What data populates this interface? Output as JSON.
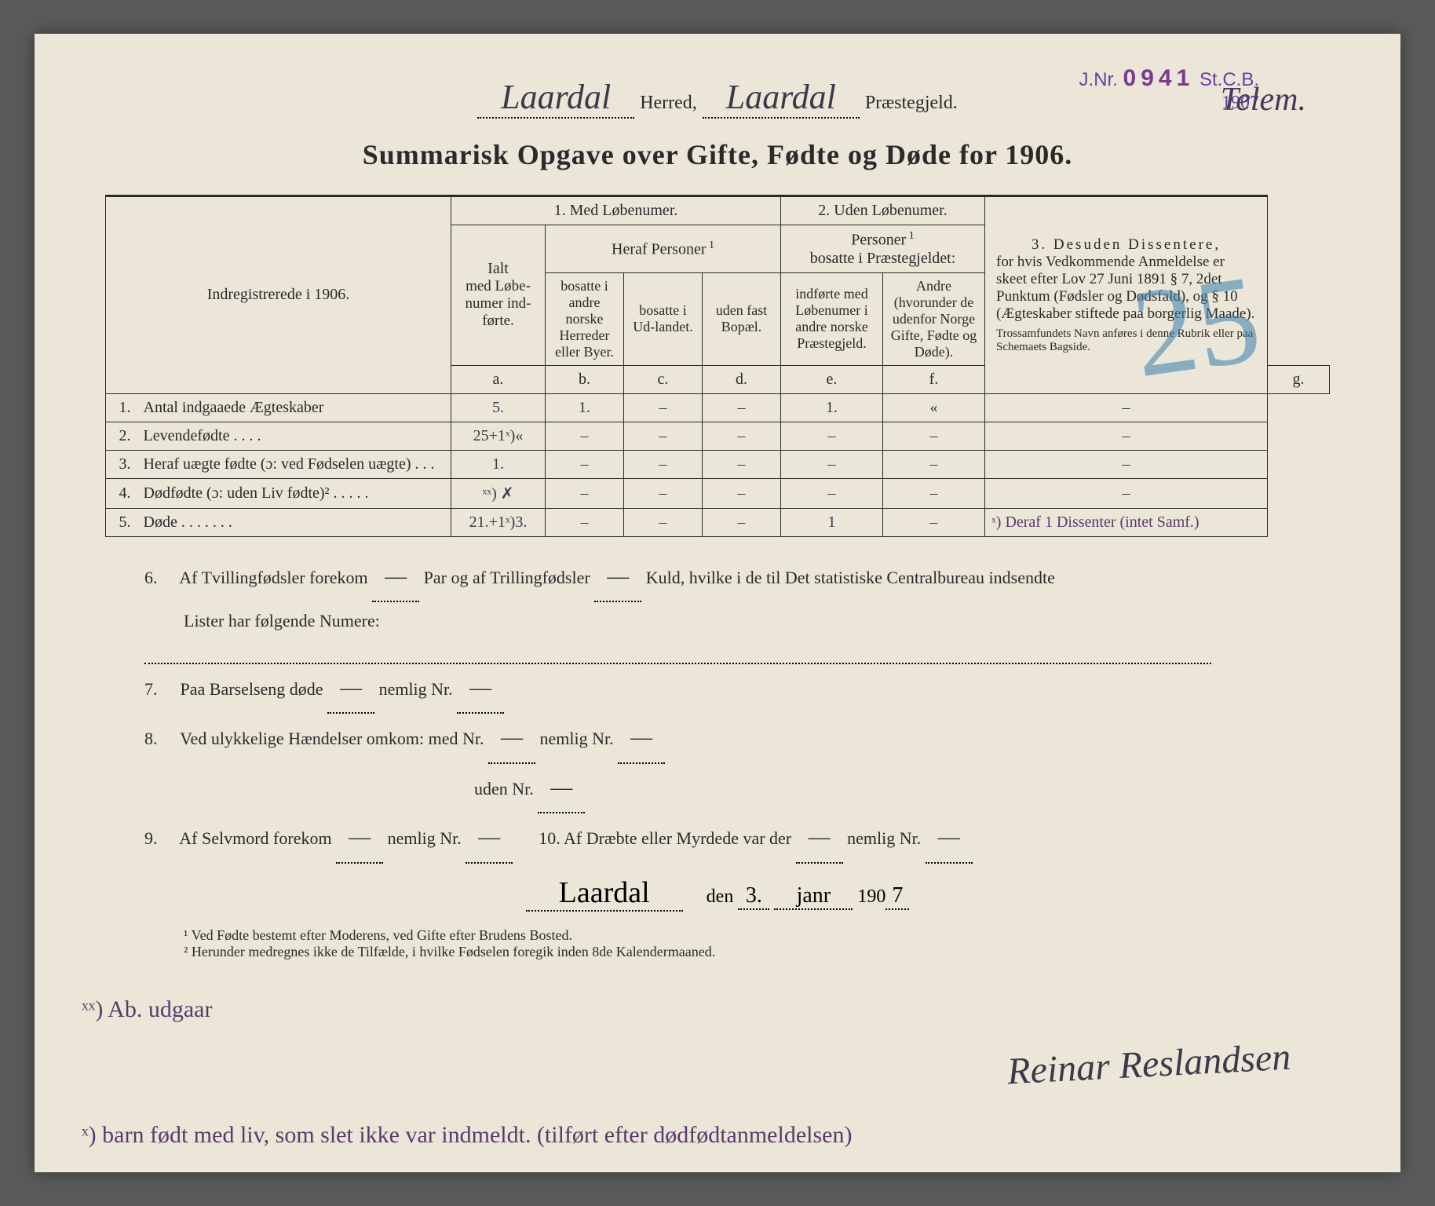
{
  "stamp": {
    "jnr_label": "J.Nr.",
    "jnr_num": "0941",
    "stcb": "St.C.B.",
    "year": "1907"
  },
  "region_hand": "Telem.",
  "header": {
    "herred_hand": "Laardal",
    "herred_label": "Herred,",
    "praeste_hand": "Laardal",
    "praeste_label": "Præstegjeld."
  },
  "title": "Summarisk Opgave over Gifte, Fødte og Døde for 1906.",
  "big_blue": "25",
  "table": {
    "left_header": "Indregistrerede i 1906.",
    "group1": "1.  Med  Løbenumer.",
    "group2": "2. Uden Løbenumer.",
    "group3_top": "3.  Desuden Dissentere,",
    "group3_body": "for hvis Vedkommende Anmeldelse er skeet efter Lov 27 Juni 1891 § 7, 2det Punktum (Fødsler og Dødsfald), og § 10 (Ægteskaber stiftede paa borgerlig Maade).",
    "group3_small": "Trossamfundets Navn anføres i denne Rubrik eller paa Schemaets Bagside.",
    "ialt": "Ialt",
    "ialt2": "med Løbe-numer ind-førte.",
    "heraf": "Heraf Personer",
    "col_b": "bosatte i andre norske Herreder eller Byer.",
    "col_c": "bosatte i Ud-landet.",
    "col_d": "uden fast Bopæl.",
    "personer2": "Personer",
    "personer2b": "bosatte i Præstegjeldet:",
    "col_e": "indførte med Løbenumer i andre norske Præstegjeld.",
    "col_f": "Andre (hvorunder de udenfor Norge Gifte, Fødte og Døde).",
    "letters": {
      "a": "a.",
      "b": "b.",
      "c": "c.",
      "d": "d.",
      "e": "e.",
      "f": "f.",
      "g": "g."
    },
    "rows": [
      {
        "n": "1.",
        "label": "Antal indgaaede Ægteskaber",
        "a": "5.",
        "b": "1.",
        "c": "–",
        "d": "–",
        "e": "1.",
        "f": "«",
        "g": "–"
      },
      {
        "n": "2.",
        "label": "Levendefødte   .    .    .    .",
        "a": "25+1ˣ)«",
        "b": "–",
        "c": "–",
        "d": "–",
        "e": "–",
        "f": "–",
        "g": "–"
      },
      {
        "n": "3.",
        "label": "Heraf uægte fødte (ɔ: ved Fødselen uægte)  .   .   .",
        "a": "1.",
        "b": "–",
        "c": "–",
        "d": "–",
        "e": "–",
        "f": "–",
        "g": "–"
      },
      {
        "n": "4.",
        "label": "Dødfødte (ɔ: uden Liv fødte)²  .   .   .   .   .",
        "a": "ˣˣ) ✗",
        "b": "–",
        "c": "–",
        "d": "–",
        "e": "–",
        "f": "–",
        "g": "–"
      },
      {
        "n": "5.",
        "label": "Døde  .   .   .   .   .   .   .",
        "a": "21.+1ˣ)3.",
        "b": "–",
        "c": "–",
        "d": "–",
        "e": "1",
        "f": "–",
        "g": "ˣ) Deraf 1 Dissenter (intet Samf.)"
      }
    ]
  },
  "below": {
    "l6a": "Af Tvillingfødsler forekom",
    "l6b": "Par og af Trillingfødsler",
    "l6c": "Kuld, hvilke i de til Det statistiske Centralbureau indsendte",
    "l6d": "Lister har følgende Numere:",
    "l7": "Paa Barselseng døde",
    "l7b": "nemlig Nr.",
    "l8": "Ved ulykkelige Hændelser omkom:  med Nr.",
    "l8b": "nemlig Nr.",
    "l8c": "uden Nr.",
    "l9": "Af Selvmord forekom",
    "l9b": "nemlig Nr.",
    "l10": "10.   Af Dræbte eller Myrdede var der",
    "l10b": "nemlig Nr.",
    "dash": "—"
  },
  "sig": {
    "place": "Laardal",
    "den": "den",
    "day": "3.",
    "month": "janr",
    "yr_prefix": "190",
    "yr": "7",
    "signature": "Reinar Reslandsen"
  },
  "hand_note_left": "ˣˣ) Ab. udgaar",
  "footnotes": {
    "f1": "¹ Ved Fødte bestemt efter Moderens, ved Gifte efter Brudens Bosted.",
    "f2": "² Herunder medregnes ikke de Tilfælde, i hvilke Fødselen foregik inden 8de Kalendermaaned."
  },
  "hand_note_bottom": "ˣ) barn født med liv, som slet ikke var indmeldt. (tilført efter dødfødtanmeldelsen)"
}
